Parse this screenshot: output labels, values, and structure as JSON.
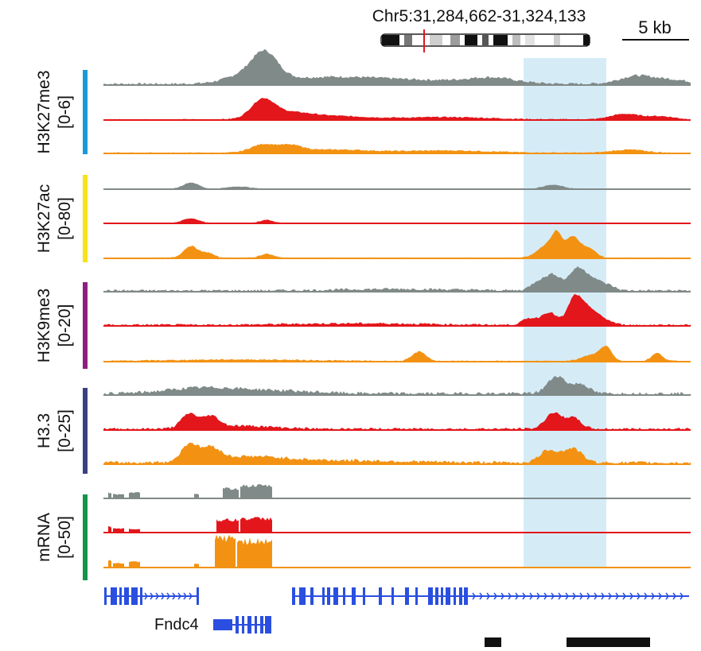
{
  "header": {
    "coordinates": "Chr5:31,284,662-31,324,133",
    "scale_label": "5 kb"
  },
  "groups": [
    {
      "name": "H3K27me3",
      "range": "[0-6]",
      "bar_color": "#1a9ad6"
    },
    {
      "name": "H3K27ac",
      "range": "[0-80]",
      "bar_color": "#f7e21b"
    },
    {
      "name": "H3K9me3",
      "range": "[0-20]",
      "bar_color": "#8e1f7e"
    },
    {
      "name": "H3.3",
      "range": "[0-25]",
      "bar_color": "#3b3f84"
    },
    {
      "name": "mRNA",
      "range": "[0-50]",
      "bar_color": "#14944a"
    }
  ],
  "sample_colors": [
    "#808a88",
    "#e3161b",
    "#f39212"
  ],
  "highlight_color": "#d5ecf7",
  "genes": {
    "label": "Fndc4",
    "color": "#2a4fe0"
  }
}
